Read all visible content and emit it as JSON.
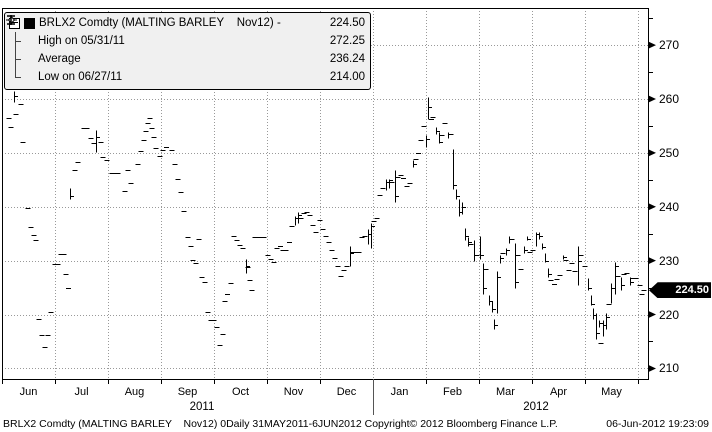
{
  "legend": {
    "expander_icon": "minus-box",
    "rows": [
      {
        "icon": "filled-square",
        "label": "BRLX2 Comdty (MALTING BARLEY    Nov12) -",
        "value": "224.50"
      },
      {
        "icon": "high-marker",
        "label": "High on 05/31/11",
        "value": "272.25"
      },
      {
        "icon": "average-marker",
        "label": "Average",
        "value": "236.24"
      },
      {
        "icon": "low-marker",
        "label": "Low on 06/27/11",
        "value": "214.00"
      }
    ]
  },
  "y_axis": {
    "majors": [
      210,
      220,
      230,
      240,
      250,
      260,
      270
    ],
    "minors": [
      215,
      225,
      235,
      245,
      255,
      265,
      275
    ],
    "badge_value": "224.50"
  },
  "x_axis": {
    "months": [
      "Jun",
      "Jul",
      "Aug",
      "Sep",
      "Oct",
      "Nov",
      "Dec",
      "Jan",
      "Feb",
      "Mar",
      "Apr",
      "May"
    ],
    "years": [
      "2011",
      "2012"
    ]
  },
  "footer": {
    "left": "BRLX2 Comdty (MALTING BARLEY    Nov12) 0Daily 31MAY2011-6JUN2012 Copyright© 2012 Bloomberg Finance L.P.",
    "right": "06-Jun-2012 19:23:09"
  },
  "colors": {
    "grid": "#999999",
    "marks": "#000000",
    "legend_bg": "#f0f0f0",
    "badge_bg": "#000000",
    "badge_text": "#ffffff"
  },
  "chart_data": {
    "type": "bar",
    "subtype": "daily-high-low-close-bars",
    "security": "BRLX2 Comdty (MALTING BARLEY Nov12)",
    "frequency": "Daily",
    "period": "31MAY2011-6JUN2012",
    "last": 224.5,
    "high": 272.25,
    "high_date": "05/31/11",
    "average": 236.24,
    "low": 214.0,
    "low_date": "06/27/11",
    "ylim": [
      208,
      277
    ],
    "x_unit": "months_from_jun_2011_start",
    "entry_format": "[month_pos, price] = close dash; [month_pos, low, high, close] = range bar",
    "bars": [
      [
        0.04,
        267.5,
        272.25,
        269.0
      ],
      [
        0.13,
        256.4
      ],
      [
        0.17,
        254.8
      ],
      [
        0.23,
        259.5,
        261.5,
        260.5
      ],
      [
        0.26,
        257.2
      ],
      [
        0.36,
        259.0
      ],
      [
        0.4,
        252.0
      ],
      [
        0.49,
        239.7
      ],
      [
        0.55,
        236.2
      ],
      [
        0.6,
        234.7
      ],
      [
        0.64,
        233.9
      ],
      [
        0.7,
        219.2
      ],
      [
        0.75,
        216.2
      ],
      [
        0.81,
        214.0
      ],
      [
        0.87,
        216.2
      ],
      [
        0.92,
        220.5
      ],
      [
        1.0,
        229.3
      ],
      [
        1.06,
        229.3
      ],
      [
        1.11,
        231.3
      ],
      [
        1.17,
        231.3
      ],
      [
        1.21,
        227.5
      ],
      [
        1.25,
        225.0
      ],
      [
        1.28,
        241.5,
        243.5,
        242.0
      ],
      [
        1.38,
        246.8
      ],
      [
        1.43,
        248.3
      ],
      [
        1.55,
        254.6
      ],
      [
        1.6,
        254.6
      ],
      [
        1.68,
        252.8
      ],
      [
        1.74,
        251.8
      ],
      [
        1.77,
        250.2,
        254.2,
        253.0
      ],
      [
        1.87,
        252.1
      ],
      [
        1.91,
        249.2
      ],
      [
        1.98,
        248.6
      ],
      [
        2.08,
        246.2
      ],
      [
        2.13,
        246.2
      ],
      [
        2.19,
        246.2
      ],
      [
        2.32,
        243.0
      ],
      [
        2.38,
        246.8
      ],
      [
        2.43,
        244.4
      ],
      [
        2.57,
        248.0
      ],
      [
        2.62,
        250.4
      ],
      [
        2.68,
        252.3
      ],
      [
        2.72,
        254.0
      ],
      [
        2.75,
        255.5
      ],
      [
        2.79,
        256.4
      ],
      [
        2.83,
        254.6
      ],
      [
        2.87,
        253.0
      ],
      [
        2.91,
        250.9
      ],
      [
        2.98,
        249.5
      ],
      [
        3.04,
        250.5
      ],
      [
        3.1,
        251.0
      ],
      [
        3.21,
        250.5
      ],
      [
        3.26,
        248.0
      ],
      [
        3.32,
        245.2
      ],
      [
        3.38,
        242.8
      ],
      [
        3.43,
        239.3
      ],
      [
        3.51,
        234.3
      ],
      [
        3.57,
        232.8
      ],
      [
        3.6,
        230.2
      ],
      [
        3.66,
        229.5
      ],
      [
        3.72,
        234.0
      ],
      [
        3.77,
        227.0
      ],
      [
        3.83,
        226.0
      ],
      [
        3.89,
        220.4
      ],
      [
        3.94,
        219.0
      ],
      [
        4.0,
        218.9
      ],
      [
        4.06,
        217.6
      ],
      [
        4.11,
        214.3
      ],
      [
        4.17,
        216.4
      ],
      [
        4.21,
        222.6
      ],
      [
        4.25,
        223.9
      ],
      [
        4.32,
        225.9
      ],
      [
        4.38,
        234.6
      ],
      [
        4.43,
        233.8
      ],
      [
        4.49,
        232.9
      ],
      [
        4.55,
        232.3
      ],
      [
        4.6,
        227.7,
        230.4,
        229.0
      ],
      [
        4.64,
        228.9
      ],
      [
        4.68,
        226.4
      ],
      [
        4.72,
        224.6
      ],
      [
        4.77,
        234.3
      ],
      [
        4.83,
        234.3
      ],
      [
        4.89,
        234.3
      ],
      [
        4.94,
        234.3
      ],
      [
        5.02,
        231.0
      ],
      [
        5.08,
        230.4
      ],
      [
        5.13,
        229.7
      ],
      [
        5.19,
        232.4
      ],
      [
        5.25,
        232.8
      ],
      [
        5.3,
        232.0
      ],
      [
        5.36,
        231.9
      ],
      [
        5.42,
        233.5
      ],
      [
        5.47,
        236.5
      ],
      [
        5.53,
        236.6,
        238.2,
        238.0
      ],
      [
        5.58,
        237.0,
        239.0,
        238.5
      ],
      [
        5.64,
        238.0
      ],
      [
        5.7,
        238.8
      ],
      [
        5.75,
        239.1
      ],
      [
        5.81,
        238.5
      ],
      [
        5.87,
        236.6
      ],
      [
        5.92,
        235.4
      ],
      [
        6.0,
        237.5
      ],
      [
        6.06,
        235.8
      ],
      [
        6.11,
        234.5
      ],
      [
        6.17,
        233.4
      ],
      [
        6.23,
        231.9
      ],
      [
        6.28,
        230.5
      ],
      [
        6.34,
        229.0
      ],
      [
        6.4,
        227.1
      ],
      [
        6.45,
        228.2
      ],
      [
        6.51,
        229.1
      ],
      [
        6.57,
        229.1,
        232.7,
        231.5
      ],
      [
        6.62,
        231.6
      ],
      [
        6.68,
        231.6
      ],
      [
        6.74,
        231.6
      ],
      [
        6.79,
        234.4
      ],
      [
        6.85,
        234.5
      ],
      [
        6.91,
        233.0,
        235.8,
        235.0
      ],
      [
        6.96,
        232.3,
        237.0,
        236.5
      ],
      [
        7.02,
        237.4
      ],
      [
        7.08,
        238.0
      ],
      [
        7.13,
        242.1
      ],
      [
        7.19,
        243.5
      ],
      [
        7.25,
        243.2,
        245.2,
        244.6
      ],
      [
        7.3,
        243.4,
        245.2,
        245.0
      ],
      [
        7.36,
        244.6
      ],
      [
        7.42,
        240.8,
        246.8,
        242.0
      ],
      [
        7.47,
        245.5
      ],
      [
        7.53,
        245.9
      ],
      [
        7.58,
        245.4
      ],
      [
        7.64,
        243.9
      ],
      [
        7.7,
        244.4
      ],
      [
        7.75,
        247.3,
        248.6,
        248.0
      ],
      [
        7.81,
        248.9
      ],
      [
        7.86,
        250.0
      ],
      [
        7.91,
        252.3
      ],
      [
        7.96,
        255.0
      ],
      [
        8.0,
        251.0,
        253.3,
        252.5
      ],
      [
        8.04,
        256.3,
        260.4,
        258.5
      ],
      [
        8.1,
        256.2
      ],
      [
        8.13,
        256.6
      ],
      [
        8.19,
        253.5,
        254.8,
        254.0
      ],
      [
        8.25,
        251.8,
        253.8,
        252.0
      ],
      [
        8.3,
        253.3
      ],
      [
        8.36,
        255.5
      ],
      [
        8.42,
        252.7,
        253.8,
        253.5
      ],
      [
        8.47,
        253.5
      ],
      [
        8.51,
        243.3,
        250.8,
        244.0
      ],
      [
        8.57,
        241.4,
        243.3,
        242.0
      ],
      [
        8.62,
        238.2,
        241.5,
        239.0
      ],
      [
        8.68,
        238.7,
        240.9,
        240.0
      ],
      [
        8.74,
        233.8,
        236.0,
        234.5
      ],
      [
        8.79,
        232.8,
        234.3,
        233.5
      ],
      [
        8.85,
        233.0
      ],
      [
        8.91,
        230.0,
        233.8,
        231.0
      ],
      [
        8.96,
        231.0
      ],
      [
        9.02,
        230.3,
        234.5,
        231.0
      ],
      [
        9.08,
        223.9,
        229.5,
        225.0
      ],
      [
        9.13,
        228.5
      ],
      [
        9.19,
        221.7,
        223.6,
        222.5
      ],
      [
        9.25,
        220.4,
        222.6,
        221.0
      ],
      [
        9.28,
        217.4,
        219.2,
        218.0
      ],
      [
        9.34,
        220.2,
        228.0,
        227.0
      ],
      [
        9.4,
        229.5,
        231.0,
        230.5
      ],
      [
        9.45,
        231.5
      ],
      [
        9.51,
        231.0,
        232.3,
        232.0
      ],
      [
        9.57,
        233.2,
        234.5,
        234.0
      ],
      [
        9.62,
        234.0
      ],
      [
        9.68,
        225.0,
        233.2,
        226.0
      ],
      [
        9.74,
        231.0
      ],
      [
        9.79,
        228.5
      ],
      [
        9.85,
        231.5,
        232.8,
        232.0
      ],
      [
        9.91,
        233.8,
        234.5,
        234.0
      ],
      [
        9.96,
        231.6
      ],
      [
        10.02,
        232.0
      ],
      [
        10.08,
        232.8,
        235.4,
        235.0
      ],
      [
        10.13,
        234.0,
        235.4,
        234.5
      ],
      [
        10.19,
        232.1,
        233.2,
        232.5
      ],
      [
        10.25,
        229.7,
        231.4,
        230.0
      ],
      [
        10.3,
        226.9,
        228.7,
        227.5
      ],
      [
        10.36,
        226.5
      ],
      [
        10.42,
        225.7
      ],
      [
        10.47,
        226.6
      ],
      [
        10.53,
        227.4
      ],
      [
        10.58,
        230.4,
        231.0,
        230.7
      ],
      [
        10.64,
        230.2
      ],
      [
        10.7,
        228.2
      ],
      [
        10.75,
        229.5
      ],
      [
        10.81,
        228.0
      ],
      [
        10.87,
        225.4,
        232.8,
        230.0
      ],
      [
        10.92,
        231.0
      ],
      [
        11.0,
        229.0
      ],
      [
        11.06,
        224.5,
        226.7,
        225.0
      ],
      [
        11.11,
        221.7,
        223.6,
        222.0
      ],
      [
        11.15,
        219.2,
        221.3,
        220.0
      ],
      [
        11.21,
        215.5,
        220.3,
        216.5
      ],
      [
        11.26,
        217.6,
        218.9,
        218.5
      ],
      [
        11.3,
        214.7
      ],
      [
        11.34,
        216.1,
        218.9,
        218.0
      ],
      [
        11.4,
        217.4,
        220.3,
        219.5
      ],
      [
        11.45,
        222.0
      ],
      [
        11.49,
        222.2,
        225.8,
        225.0
      ],
      [
        11.57,
        223.9,
        229.7,
        229.0
      ],
      [
        11.62,
        227.1
      ],
      [
        11.68,
        224.5,
        226.9,
        225.5
      ],
      [
        11.74,
        227.5
      ],
      [
        11.79,
        227.7
      ],
      [
        11.85,
        225.4,
        227.0,
        226.0
      ],
      [
        11.91,
        226.7
      ],
      [
        11.96,
        226.7
      ],
      [
        12.04,
        225.4
      ],
      [
        12.08,
        223.8
      ],
      [
        12.11,
        224.5
      ]
    ]
  }
}
